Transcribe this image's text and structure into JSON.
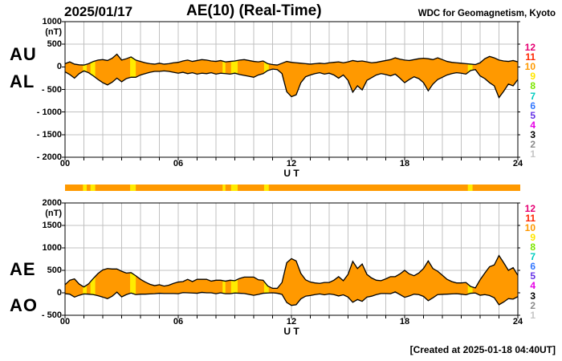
{
  "header": {
    "date": "2025/01/17",
    "title": "AE(10) (Real-Time)",
    "source": "WDC for Geomagnetism, Kyoto"
  },
  "footer": {
    "created": "[Created at 2025-01-18 04:40UT]"
  },
  "colors": {
    "fill": "#FF9900",
    "flagged_fill": "#FFEB00",
    "outline": "#000000",
    "grid": "#C0C0C0",
    "border": "#000000",
    "background": "#FFFFFF"
  },
  "station_scale": {
    "values": [
      "12",
      "11",
      "10",
      "9",
      "8",
      "7",
      "6",
      "5",
      "4",
      "3",
      "2",
      "1"
    ],
    "colors": [
      "#E60073",
      "#FF2600",
      "#FF9900",
      "#FFE600",
      "#7CE600",
      "#00CCC0",
      "#3377FF",
      "#6633E6",
      "#E600E6",
      "#000000",
      "#8C8C8C",
      "#C6C6C6"
    ]
  },
  "quality_bar": {
    "base_color": "#FF9900",
    "flagged_color": "#FFEB00",
    "flagged_hours": [
      [
        0.95,
        1.15
      ],
      [
        1.35,
        1.6
      ],
      [
        3.45,
        3.75
      ],
      [
        8.35,
        8.5
      ],
      [
        8.8,
        9.15
      ],
      [
        10.55,
        10.8
      ],
      [
        21.35,
        21.6
      ]
    ]
  },
  "chart_data": [
    {
      "type": "area",
      "name": "AU-AL panel",
      "x": {
        "label": "U T",
        "range_hours": [
          0,
          24
        ],
        "grid_step_hours": 1,
        "tick_hours": [
          0,
          6,
          12,
          18,
          24
        ],
        "tick_labels": [
          "00",
          "06",
          "12",
          "18",
          "24"
        ]
      },
      "y": {
        "unit": "(nT)",
        "range": [
          -2000,
          1000
        ],
        "grid_step": 500,
        "tick_values": [
          1000,
          500,
          0,
          -500,
          -1000,
          -1500,
          -2000
        ],
        "tick_labels": [
          "1000",
          "500",
          "0",
          "- 500",
          "- 1000",
          "- 1500",
          "- 2000"
        ]
      },
      "sample_step_hours": 0.25,
      "series": [
        {
          "name": "AU",
          "values": [
            70,
            110,
            60,
            45,
            40,
            70,
            120,
            150,
            160,
            140,
            190,
            280,
            150,
            180,
            220,
            150,
            120,
            90,
            70,
            60,
            80,
            60,
            70,
            90,
            100,
            130,
            150,
            120,
            140,
            160,
            150,
            130,
            120,
            140,
            110,
            120,
            130,
            150,
            160,
            140,
            120,
            110,
            130,
            70,
            50,
            40,
            80,
            120,
            100,
            90,
            80,
            70,
            60,
            70,
            80,
            70,
            90,
            100,
            110,
            90,
            110,
            140,
            120,
            130,
            110,
            90,
            100,
            120,
            140,
            160,
            200,
            170,
            150,
            140,
            160,
            180,
            190,
            180,
            160,
            200,
            160,
            120,
            100,
            90,
            80,
            70,
            60,
            50,
            90,
            180,
            230,
            200,
            150,
            130,
            120,
            140,
            110
          ]
        },
        {
          "name": "AL",
          "values": [
            -110,
            -170,
            -250,
            -150,
            -90,
            -130,
            -200,
            -280,
            -350,
            -400,
            -340,
            -250,
            -330,
            -260,
            -230,
            -230,
            -180,
            -150,
            -120,
            -100,
            -100,
            -90,
            -100,
            -120,
            -140,
            -120,
            -150,
            -130,
            -160,
            -140,
            -150,
            -130,
            -160,
            -140,
            -150,
            -160,
            -140,
            -170,
            -190,
            -210,
            -230,
            -180,
            -150,
            -80,
            -50,
            -60,
            -150,
            -550,
            -660,
            -620,
            -350,
            -220,
            -180,
            -150,
            -130,
            -160,
            -140,
            -180,
            -250,
            -180,
            -300,
            -560,
            -420,
            -510,
            -300,
            -240,
            -180,
            -150,
            -170,
            -200,
            -160,
            -250,
            -350,
            -280,
            -220,
            -260,
            -350,
            -530,
            -380,
            -280,
            -230,
            -180,
            -150,
            -130,
            -140,
            -160,
            -80,
            -60,
            -200,
            -260,
            -350,
            -420,
            -680,
            -540,
            -380,
            -420,
            -280
          ]
        }
      ]
    },
    {
      "type": "area",
      "name": "AE-AO panel",
      "x": {
        "label": "U T",
        "range_hours": [
          0,
          24
        ],
        "grid_step_hours": 1,
        "tick_hours": [
          0,
          6,
          12,
          18,
          24
        ],
        "tick_labels": [
          "00",
          "06",
          "12",
          "18",
          "24"
        ]
      },
      "y": {
        "unit": "(nT)",
        "range": [
          -500,
          2000
        ],
        "grid_step": 500,
        "tick_values": [
          2000,
          1500,
          1000,
          500,
          0,
          -500
        ],
        "tick_labels": [
          "2000",
          "1500",
          "1000",
          "500",
          "0",
          "- 500"
        ]
      },
      "sample_step_hours": 0.25,
      "series": [
        {
          "name": "AE",
          "values": [
            180,
            280,
            310,
            195,
            130,
            200,
            320,
            430,
            510,
            540,
            530,
            530,
            480,
            440,
            450,
            380,
            300,
            240,
            190,
            160,
            180,
            150,
            170,
            210,
            240,
            250,
            300,
            250,
            300,
            300,
            300,
            260,
            280,
            280,
            260,
            280,
            270,
            320,
            350,
            350,
            350,
            290,
            280,
            150,
            100,
            100,
            230,
            670,
            760,
            710,
            430,
            290,
            240,
            220,
            210,
            230,
            230,
            280,
            360,
            270,
            410,
            700,
            540,
            640,
            410,
            330,
            280,
            270,
            310,
            360,
            360,
            420,
            500,
            420,
            380,
            440,
            540,
            710,
            540,
            480,
            390,
            300,
            250,
            220,
            220,
            230,
            140,
            110,
            290,
            440,
            580,
            620,
            830,
            670,
            500,
            560,
            390
          ]
        },
        {
          "name": "AO",
          "values": [
            -20,
            -30,
            -95,
            -55,
            -25,
            -30,
            -40,
            -65,
            -95,
            -130,
            -75,
            15,
            -90,
            -40,
            -5,
            -40,
            -30,
            -30,
            -25,
            -20,
            -10,
            -15,
            -15,
            -15,
            -20,
            5,
            0,
            -5,
            -10,
            10,
            0,
            0,
            -20,
            0,
            -20,
            -20,
            -5,
            -10,
            -15,
            -35,
            -55,
            -35,
            -10,
            -5,
            0,
            -10,
            -35,
            -215,
            -280,
            -265,
            -135,
            -75,
            -60,
            -40,
            -25,
            -45,
            -25,
            -40,
            -70,
            -45,
            -95,
            -210,
            -150,
            -190,
            -95,
            -75,
            -40,
            -15,
            -15,
            -20,
            20,
            -40,
            -100,
            -70,
            -30,
            -40,
            -80,
            -175,
            -110,
            -40,
            -35,
            -30,
            -25,
            -20,
            -30,
            -45,
            -10,
            -5,
            -55,
            -40,
            -60,
            -110,
            -265,
            -205,
            -130,
            -140,
            -85
          ]
        }
      ]
    }
  ]
}
